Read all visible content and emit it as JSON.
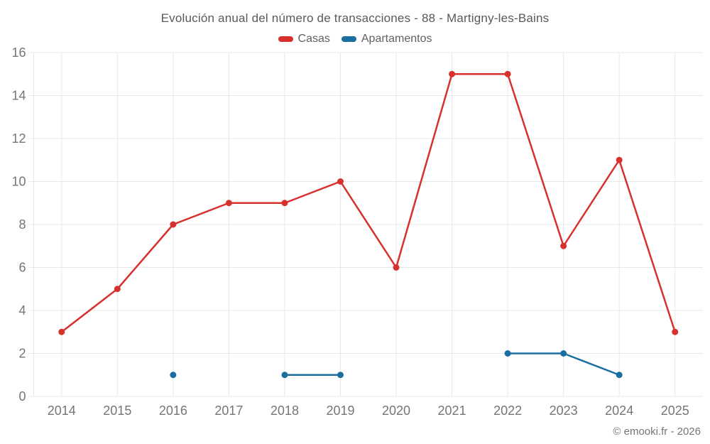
{
  "header": {
    "title": "Evolución anual del número de transacciones - 88 - Martigny-les-Bains"
  },
  "footer": {
    "credit": "© emooki.fr - 2026"
  },
  "colors": {
    "casas": "#d7312e",
    "apartamentos": "#1a6fa0",
    "grid": "#e8e8e8",
    "axis_text": "#757575",
    "title_text": "#595959"
  },
  "chart_data": {
    "type": "line",
    "title": "Evolución anual del número de transacciones - 88 - Martigny-les-Bains",
    "categories": [
      "2014",
      "2015",
      "2016",
      "2017",
      "2018",
      "2019",
      "2020",
      "2021",
      "2022",
      "2023",
      "2024",
      "2025"
    ],
    "series": [
      {
        "name": "Casas",
        "color": "#d7312e",
        "values": [
          3,
          5,
          8,
          9,
          9,
          10,
          6,
          15,
          15,
          7,
          11,
          3
        ]
      },
      {
        "name": "Apartamentos",
        "color": "#1a6fa0",
        "values": [
          null,
          null,
          1,
          null,
          1,
          1,
          null,
          null,
          2,
          2,
          1,
          null
        ]
      }
    ],
    "xlabel": "",
    "ylabel": "",
    "ylim": [
      0,
      16
    ],
    "yticks": [
      0,
      2,
      4,
      6,
      8,
      10,
      12,
      14,
      16
    ],
    "grid": "both",
    "legend_position": "top",
    "marker": "circle"
  }
}
